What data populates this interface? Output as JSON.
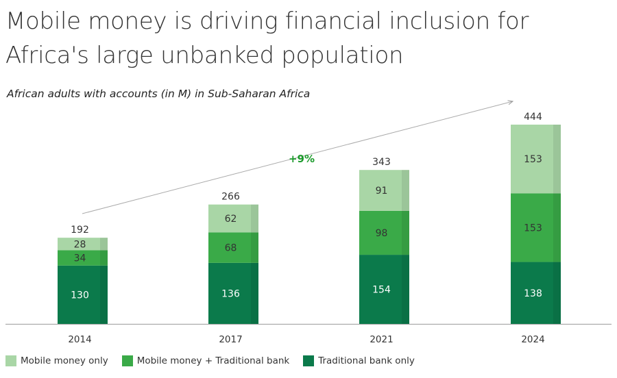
{
  "title": "Mobile money is driving financial inclusion for Africa's large unbanked population",
  "subtitle": "African adults with accounts (in M) in Sub-Saharan Africa",
  "chart_data": {
    "type": "bar",
    "stacked": true,
    "categories": [
      "2014",
      "2017",
      "2021",
      "2024"
    ],
    "series": [
      {
        "name": "Traditional bank only",
        "values": [
          130,
          136,
          154,
          138
        ],
        "color": "#0b7a4b"
      },
      {
        "name": "Mobile money + Traditional bank",
        "values": [
          34,
          68,
          98,
          153
        ],
        "color": "#3aaa48"
      },
      {
        "name": "Mobile money only",
        "values": [
          28,
          62,
          91,
          153
        ],
        "color": "#a9d6a6"
      }
    ],
    "totals": [
      192,
      266,
      343,
      444
    ],
    "annotation": {
      "text": "+9%",
      "color": "#1a9a2a"
    },
    "ylim": [
      0,
      444
    ],
    "legend": "bottom-left",
    "legend_order": [
      "Mobile money only",
      "Mobile money + Traditional bank",
      "Traditional bank only"
    ]
  }
}
